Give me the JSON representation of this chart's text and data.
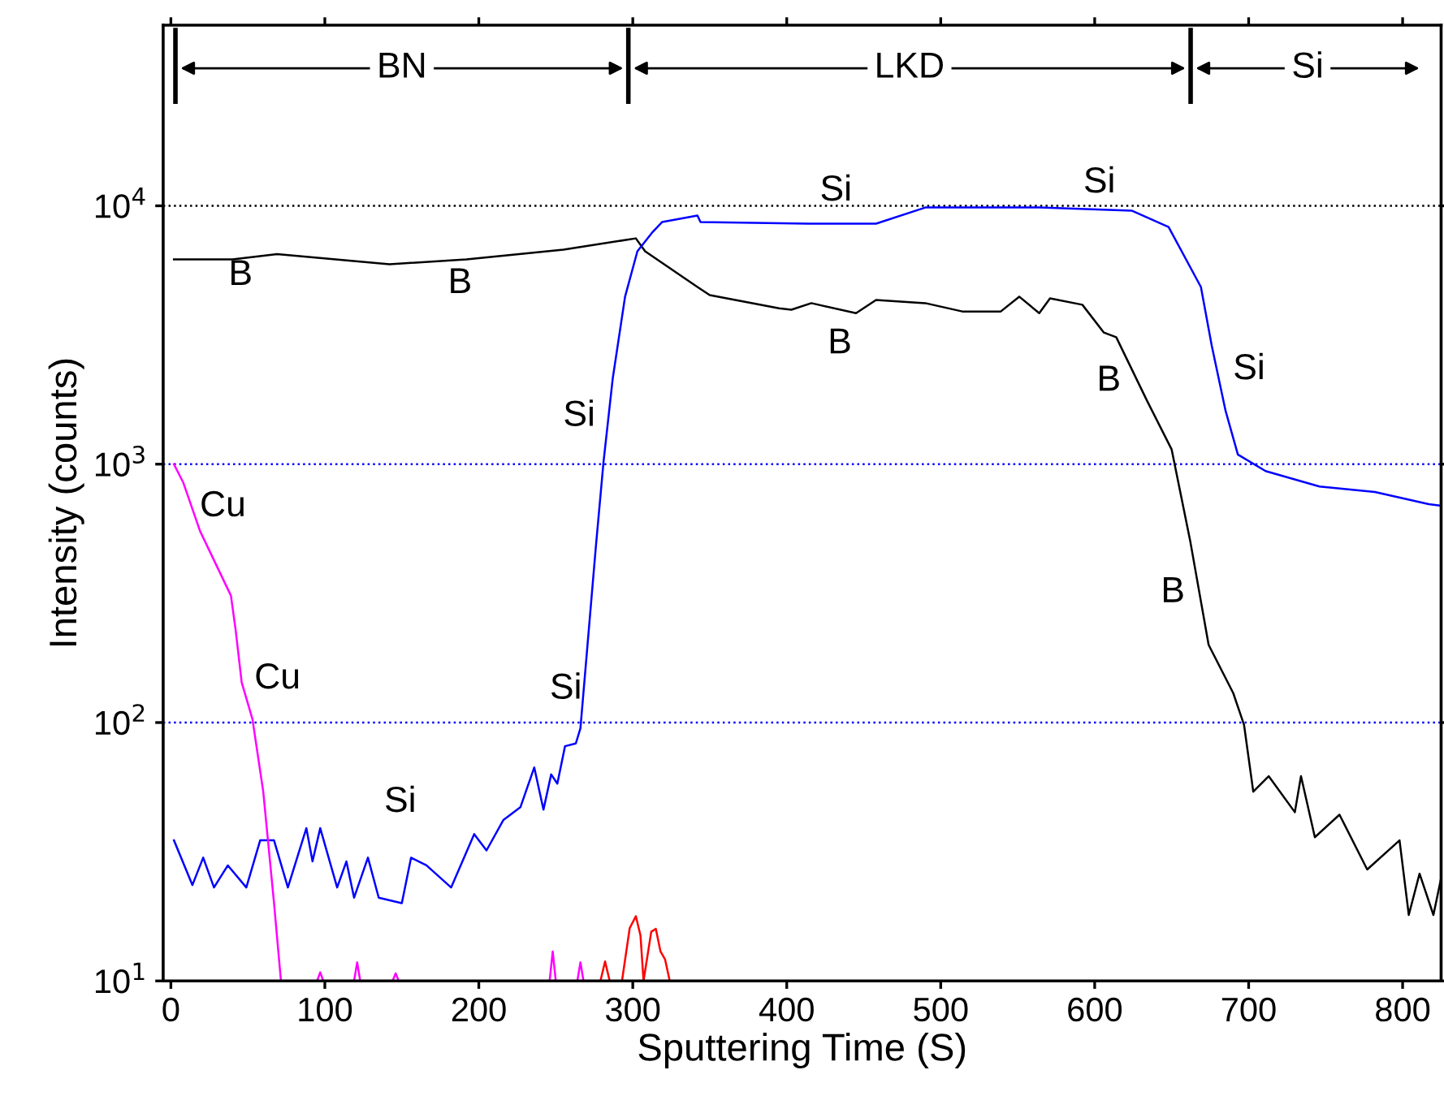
{
  "chart_data": {
    "type": "line",
    "xlabel": "Sputtering Time (S)",
    "ylabel": "Intensity (counts)",
    "log": "y",
    "xlim": [
      -5,
      825
    ],
    "ylim": [
      10,
      50000
    ],
    "xticks": [
      0,
      100,
      200,
      300,
      400,
      500,
      600,
      700,
      800
    ],
    "yticks": [
      {
        "value": 10,
        "label": "10$^{1}$"
      },
      {
        "value": 100,
        "label": "10$^{2}$"
      },
      {
        "value": 1000,
        "label": "10$^{3}$"
      },
      {
        "value": 10000,
        "label": "10$^{4}$"
      }
    ],
    "grid": false,
    "legend": false,
    "marker": "none",
    "line_style": "solid",
    "series": [
      {
        "name": "B",
        "color": "#000000",
        "x": [
          2,
          40,
          69,
          142,
          192,
          255,
          302,
          308,
          342,
          350,
          395,
          403,
          416,
          445,
          458,
          490,
          514,
          539,
          551,
          564,
          571,
          592,
          606,
          614,
          634,
          650,
          662,
          674,
          690,
          697,
          703,
          713,
          730,
          734,
          743,
          759,
          777,
          798,
          804,
          811,
          820,
          825
        ],
        "values": [
          6200,
          6200,
          6500,
          5940,
          6200,
          6770,
          7480,
          6670,
          4850,
          4510,
          4010,
          3960,
          4200,
          3840,
          4320,
          4200,
          3900,
          3900,
          4450,
          3840,
          4380,
          4140,
          3230,
          3100,
          1760,
          1140,
          506,
          200,
          130,
          98,
          54,
          62,
          45,
          62,
          36,
          44,
          27,
          35,
          18,
          26,
          18,
          25
        ]
      },
      {
        "name": "Si",
        "color": "#0000ff",
        "x": [
          2,
          14,
          21,
          28,
          37,
          49,
          58,
          67,
          76,
          88,
          92,
          97,
          108,
          114,
          119,
          128,
          135,
          150,
          156,
          166,
          182,
          197,
          205,
          216,
          227,
          236,
          242,
          247,
          251,
          256,
          263,
          266,
          276,
          281,
          287,
          295,
          303,
          313,
          319,
          342,
          344,
          414,
          458,
          490,
          564,
          624,
          648,
          669,
          676,
          685,
          693,
          711,
          746,
          782,
          817,
          825
        ],
        "values": [
          35,
          23.5,
          30,
          23,
          28,
          23,
          35,
          35,
          23,
          39,
          29,
          39,
          23,
          29,
          21,
          30,
          21,
          20,
          30,
          28,
          23,
          37,
          32,
          42,
          47,
          67,
          46,
          63,
          58,
          81,
          83,
          95,
          478,
          1020,
          2150,
          4450,
          6670,
          7930,
          8650,
          9170,
          8650,
          8530,
          8530,
          9850,
          9850,
          9580,
          8280,
          4850,
          2880,
          1610,
          1090,
          940,
          820,
          780,
          700,
          690
        ]
      },
      {
        "name": "Cu",
        "color": "#ff00ff",
        "x": [
          2,
          8,
          19,
          39,
          42,
          46,
          53,
          60,
          67,
          71.5,
          95,
          97,
          99,
          119,
          121,
          123,
          144,
          146,
          148,
          246,
          248,
          250,
          264,
          266,
          268
        ],
        "values": [
          1000,
          850,
          550,
          310,
          230,
          143,
          103,
          54,
          20,
          10,
          10,
          10.8,
          10,
          10,
          11.8,
          10,
          10,
          10.7,
          10,
          10,
          13,
          10,
          10,
          11.8,
          10
        ]
      },
      {
        "color": "#ff0000",
        "x": [
          279,
          282,
          285,
          293,
          298,
          302,
          305,
          307,
          312,
          315,
          318,
          321,
          324
        ],
        "values": [
          10,
          11.9,
          10,
          10,
          16,
          17.8,
          15,
          10,
          15.5,
          15.9,
          13,
          12.1,
          10
        ]
      }
    ],
    "ref_lines": [
      {
        "axis": "y",
        "value": 10000,
        "label": null,
        "color": "#000000",
        "line_style": "dotted"
      },
      {
        "axis": "y",
        "value": 1000,
        "label": null,
        "color": "#0000ff",
        "line_style": "dotted"
      },
      {
        "axis": "y",
        "value": 100,
        "label": null,
        "color": "#0000ff",
        "line_style": "dotted"
      }
    ],
    "annotations": [
      "BN",
      "LKD",
      "Si"
    ]
  }
}
